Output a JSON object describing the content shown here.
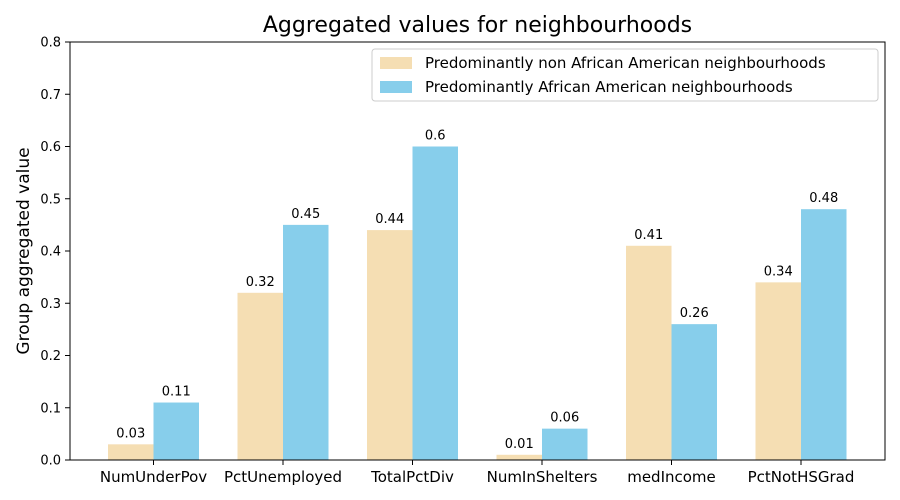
{
  "chart_data": {
    "type": "bar",
    "title": "Aggregated values for neighbourhoods",
    "xlabel": "",
    "ylabel": "Group aggregated value",
    "ylim": [
      0,
      0.8
    ],
    "yticks": [
      0.0,
      0.1,
      0.2,
      0.3,
      0.4,
      0.5,
      0.6,
      0.7,
      0.8
    ],
    "yticks_labels": [
      "0.0",
      "0.1",
      "0.2",
      "0.3",
      "0.4",
      "0.5",
      "0.6",
      "0.7",
      "0.8"
    ],
    "categories": [
      "NumUnderPov",
      "PctUnemployed",
      "TotalPctDiv",
      "NumInShelters",
      "medIncome",
      "PctNotHSGrad"
    ],
    "series": [
      {
        "name": "Predominantly non African American neighbourhoods",
        "color": "#f5deb3",
        "values": [
          0.03,
          0.32,
          0.44,
          0.01,
          0.41,
          0.34
        ],
        "labels": [
          "0.03",
          "0.32",
          "0.44",
          "0.01",
          "0.41",
          "0.34"
        ]
      },
      {
        "name": "Predominantly African American neighbourhoods",
        "color": "#87ceeb",
        "values": [
          0.11,
          0.45,
          0.6,
          0.06,
          0.26,
          0.48
        ],
        "labels": [
          "0.11",
          "0.45",
          "0.6",
          "0.06",
          "0.26",
          "0.48"
        ]
      }
    ],
    "legend_position": "top-right",
    "grid": false
  }
}
